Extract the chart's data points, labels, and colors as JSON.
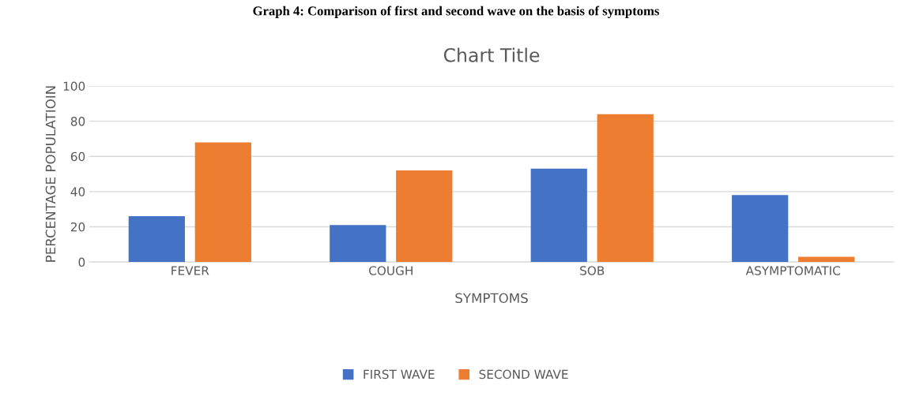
{
  "chart_data": {
    "type": "bar",
    "title": "Chart Title",
    "annotations": [
      "Graph 4: Comparison of first and second wave on the basis of symptoms"
    ],
    "xlabel": "SYMPTOMS",
    "ylabel": "PERCENTAGE POPULATIOIN",
    "categories": [
      "FEVER",
      "COUGH",
      "SOB",
      "ASYMPTOMATIC"
    ],
    "series": [
      {
        "name": "FIRST WAVE",
        "color": "#4472c4",
        "values": [
          26,
          21,
          53,
          38
        ]
      },
      {
        "name": "SECOND WAVE",
        "color": "#ed7d31",
        "values": [
          68,
          52,
          84,
          3
        ]
      }
    ],
    "ylim": [
      0,
      100
    ],
    "yticks": [
      0,
      20,
      40,
      60,
      80,
      100
    ],
    "grid": "y",
    "legend": "bottom"
  }
}
